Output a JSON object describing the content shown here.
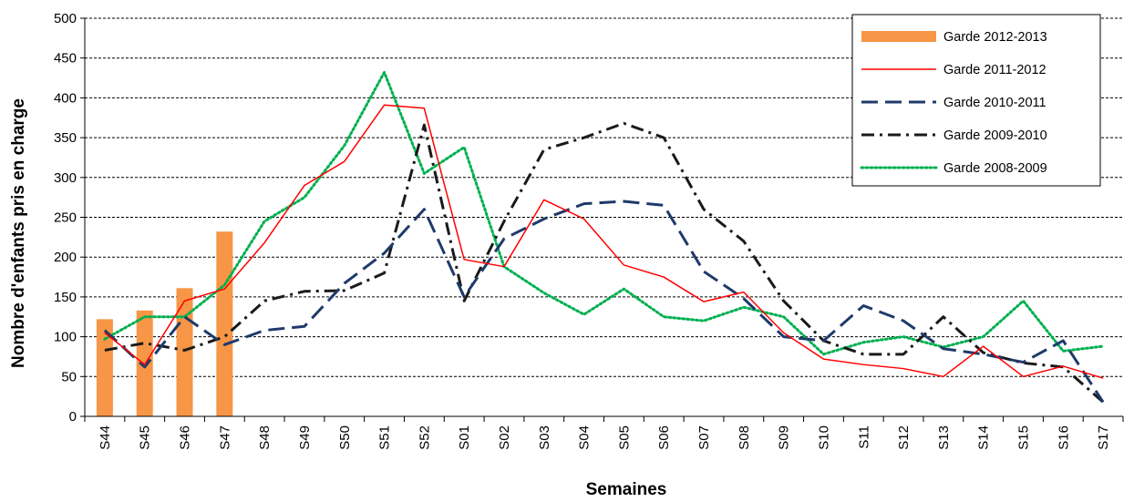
{
  "chart_data": {
    "type": "line",
    "title": "",
    "xlabel": "Semaines",
    "ylabel": "Nombre d'enfants  pris en charge",
    "ylim": [
      0,
      500
    ],
    "yticks": [
      0,
      50,
      100,
      150,
      200,
      250,
      300,
      350,
      400,
      450,
      500
    ],
    "grid": "horizontal dashed",
    "legend": "top-right",
    "categories": [
      "S44",
      "S45",
      "S46",
      "S47",
      "S48",
      "S49",
      "S50",
      "S51",
      "S52",
      "S01",
      "S02",
      "S03",
      "S04",
      "S05",
      "S06",
      "S07",
      "S08",
      "S09",
      "S10",
      "S11",
      "S12",
      "S13",
      "S14",
      "S15",
      "S16",
      "S17"
    ],
    "series": [
      {
        "name": "Garde 2012-2013",
        "type": "bar",
        "color": "#f79646",
        "style": "bar",
        "values": [
          122,
          133,
          161,
          232,
          null,
          null,
          null,
          null,
          null,
          null,
          null,
          null,
          null,
          null,
          null,
          null,
          null,
          null,
          null,
          null,
          null,
          null,
          null,
          null,
          null,
          null
        ]
      },
      {
        "name": "Garde 2011-2012",
        "type": "line",
        "color": "#ff0000",
        "style": "solid",
        "values": [
          105,
          65,
          145,
          160,
          218,
          290,
          320,
          391,
          387,
          197,
          188,
          272,
          248,
          190,
          175,
          144,
          156,
          105,
          72,
          65,
          60,
          50,
          88,
          50,
          63,
          48
        ]
      },
      {
        "name": "Garde 2010-2011",
        "type": "line",
        "color": "#1f3a6b",
        "style": "long-dash",
        "values": [
          108,
          62,
          125,
          90,
          108,
          113,
          167,
          205,
          260,
          150,
          223,
          248,
          267,
          270,
          265,
          182,
          148,
          100,
          95,
          139,
          120,
          85,
          78,
          68,
          95,
          18
        ]
      },
      {
        "name": "Garde 2009-2010",
        "type": "line",
        "color": "#1a1a1a",
        "style": "dash-dot",
        "values": [
          83,
          92,
          83,
          100,
          145,
          157,
          158,
          180,
          366,
          145,
          245,
          335,
          350,
          368,
          350,
          260,
          220,
          145,
          95,
          78,
          78,
          125,
          80,
          67,
          62,
          18
        ]
      },
      {
        "name": "Garde 2008-2009",
        "type": "line",
        "color": "#00b050",
        "style": "dotted",
        "values": [
          97,
          125,
          125,
          165,
          245,
          275,
          340,
          432,
          305,
          338,
          188,
          155,
          128,
          160,
          125,
          120,
          137,
          125,
          78,
          93,
          100,
          87,
          100,
          145,
          82,
          88
        ]
      }
    ]
  }
}
